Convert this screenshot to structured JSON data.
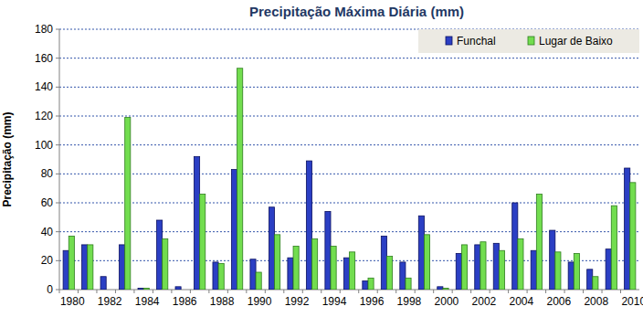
{
  "chart_data": {
    "type": "bar",
    "title": "Precipitação Máxima Diária (mm)",
    "y_label": "Precipitação (mm)",
    "categories": [
      "1980",
      null,
      "1982",
      null,
      "1984",
      null,
      "1986",
      null,
      "1988",
      null,
      "1990",
      null,
      "1992",
      null,
      "1994",
      null,
      "1996",
      null,
      "1998",
      null,
      "2000",
      null,
      "2002",
      null,
      "2004",
      null,
      "2006",
      null,
      "2008",
      null,
      "2010"
    ],
    "series": [
      {
        "name": "Funchal",
        "color": "#2b3fc4",
        "values": [
          27,
          31,
          9,
          31,
          1,
          48,
          2,
          92,
          19,
          83,
          21,
          57,
          22,
          89,
          54,
          22,
          6,
          37,
          19,
          51,
          2,
          25,
          31,
          32,
          60,
          27,
          41,
          19,
          14,
          28,
          84
        ]
      },
      {
        "name": "Lugar de Baixo",
        "color": "#72dd4f",
        "values": [
          37,
          31,
          0,
          119,
          1,
          35,
          0,
          66,
          18,
          153,
          12,
          38,
          30,
          35,
          30,
          26,
          8,
          23,
          8,
          38,
          1,
          31,
          33,
          27,
          35,
          66,
          26,
          25,
          9,
          58,
          74
        ]
      }
    ],
    "ylim": [
      0,
      180
    ],
    "yticks": [
      0,
      20,
      40,
      60,
      80,
      100,
      120,
      140,
      160,
      180
    ],
    "grid": true,
    "legend": "top-right"
  }
}
